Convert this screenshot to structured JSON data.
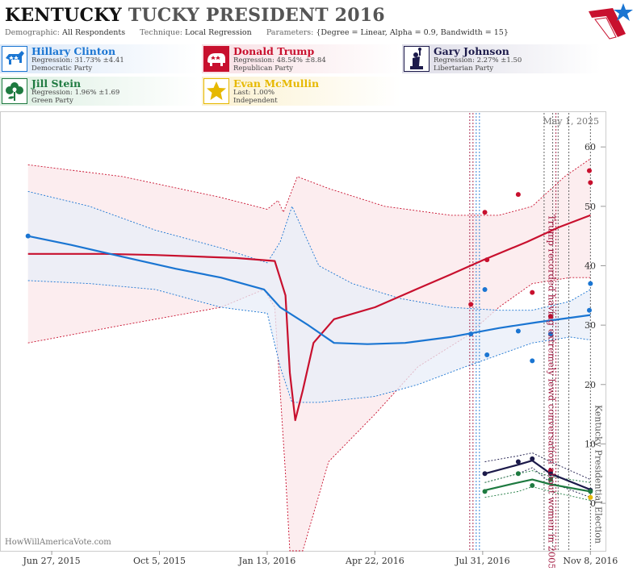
{
  "header": {
    "state": "KENTUCKY",
    "race": "TUCKY PRESIDENT 2016",
    "demographic_label": "Demographic:",
    "demographic_value": "All Respondents",
    "technique_label": "Technique:",
    "technique_value": "Local Regression",
    "parameters_label": "Parameters:",
    "parameters_value": "{Degree = Linear, Alpha = 0.9, Bandwidth = 15}"
  },
  "candidates": [
    {
      "name": "Hillary Clinton",
      "stat": "Regression: 31.73% ±4.41",
      "party": "Democratic Party",
      "color": "#1a75d2",
      "icon": "donkey-icon"
    },
    {
      "name": "Donald Trump",
      "stat": "Regression: 48.54% ±8.84",
      "party": "Republican Party",
      "color": "#c8102e",
      "icon": "elephant-icon"
    },
    {
      "name": "Gary Johnson",
      "stat": "Regression: 2.27% ±1.50",
      "party": "Libertarian Party",
      "color": "#1c1a4a",
      "icon": "liberty-statue-icon"
    },
    {
      "name": "Jill Stein",
      "stat": "Regression: 1.96% ±1.69",
      "party": "Green Party",
      "color": "#1e7a40",
      "icon": "flower-icon"
    },
    {
      "name": "Evan McMullin",
      "stat": "Last: 1.00%",
      "party": "Independent",
      "color": "#e6b800",
      "icon": "star-icon"
    }
  ],
  "chart_data": {
    "type": "line",
    "date_label": "May 1, 2025",
    "watermark": "HowWillAmericaVote.com",
    "x_ticks": [
      "Jun 27, 2015",
      "Oct 5, 2015",
      "Jan 13, 2016",
      "Apr 22, 2016",
      "Jul 31, 2016",
      "Nov 8, 2016"
    ],
    "x_range": [
      "2015-05-10",
      "2016-11-22"
    ],
    "ylim": [
      -8,
      66
    ],
    "y_ticks": [
      0,
      10,
      20,
      30,
      40,
      50,
      60
    ],
    "annotations": [
      {
        "text": "Trump recorded having extremely lewd conversation about women in 2005",
        "date": "2016-10-07",
        "color": "#a0143c"
      },
      {
        "text": "Kentucky Presidential Election",
        "date": "2016-11-08",
        "color": "#555555"
      }
    ],
    "event_lines": [
      {
        "date": "2016-07-19",
        "color": "#a0143c"
      },
      {
        "date": "2016-07-22",
        "color": "#a0143c"
      },
      {
        "date": "2016-07-25",
        "color": "#1a75d2"
      },
      {
        "date": "2016-07-28",
        "color": "#1a75d2"
      },
      {
        "date": "2016-09-26",
        "color": "#555555"
      },
      {
        "date": "2016-10-04",
        "color": "#555555"
      },
      {
        "date": "2016-10-07",
        "color": "#a0143c"
      },
      {
        "date": "2016-10-09",
        "color": "#555555"
      },
      {
        "date": "2016-10-19",
        "color": "#555555"
      },
      {
        "date": "2016-11-08",
        "color": "#555555"
      }
    ],
    "series": [
      {
        "name": "Donald Trump",
        "color": "#c8102e",
        "band_fill": "#fbe7ea",
        "line": [
          [
            "2015-06-05",
            42
          ],
          [
            "2015-08-15",
            42
          ],
          [
            "2015-10-01",
            41.8
          ],
          [
            "2015-12-15",
            41.3
          ],
          [
            "2016-01-20",
            40.8
          ],
          [
            "2016-01-30",
            35
          ],
          [
            "2016-02-03",
            22
          ],
          [
            "2016-02-08",
            14
          ],
          [
            "2016-02-15",
            19
          ],
          [
            "2016-02-25",
            27
          ],
          [
            "2016-03-15",
            31
          ],
          [
            "2016-04-22",
            33
          ],
          [
            "2016-05-30",
            36
          ],
          [
            "2016-07-01",
            38.5
          ],
          [
            "2016-08-01",
            41
          ],
          [
            "2016-09-10",
            44
          ],
          [
            "2016-10-10",
            46.5
          ],
          [
            "2016-11-08",
            48.5
          ]
        ],
        "upper": [
          [
            "2015-06-05",
            57
          ],
          [
            "2015-09-01",
            55
          ],
          [
            "2015-12-01",
            51.5
          ],
          [
            "2016-01-13",
            49.5
          ],
          [
            "2016-01-23",
            51
          ],
          [
            "2016-01-28",
            49
          ],
          [
            "2016-02-10",
            55
          ],
          [
            "2016-03-10",
            53
          ],
          [
            "2016-05-01",
            50
          ],
          [
            "2016-07-01",
            48.5
          ],
          [
            "2016-08-15",
            48.5
          ],
          [
            "2016-09-15",
            50
          ],
          [
            "2016-10-15",
            55
          ],
          [
            "2016-11-08",
            58
          ]
        ],
        "lower": [
          [
            "2015-06-05",
            27
          ],
          [
            "2015-09-01",
            30
          ],
          [
            "2015-12-01",
            33
          ],
          [
            "2016-01-10",
            36
          ],
          [
            "2016-01-20",
            33
          ],
          [
            "2016-01-30",
            5
          ],
          [
            "2016-02-03",
            -8
          ],
          [
            "2016-02-15",
            -8
          ],
          [
            "2016-03-10",
            7
          ],
          [
            "2016-04-22",
            15
          ],
          [
            "2016-06-01",
            23
          ],
          [
            "2016-07-15",
            28
          ],
          [
            "2016-08-15",
            33
          ],
          [
            "2016-09-15",
            37
          ],
          [
            "2016-10-20",
            38
          ],
          [
            "2016-11-08",
            38
          ]
        ],
        "points": [
          [
            "2016-07-20",
            33.5
          ],
          [
            "2016-08-02",
            49
          ],
          [
            "2016-08-04",
            41
          ],
          [
            "2016-09-02",
            52
          ],
          [
            "2016-09-15",
            35.5
          ],
          [
            "2016-10-02",
            31.5
          ],
          [
            "2016-10-02",
            5.5
          ],
          [
            "2016-11-07",
            56
          ],
          [
            "2016-11-08",
            54
          ]
        ]
      },
      {
        "name": "Hillary Clinton",
        "color": "#1a75d2",
        "band_fill": "#e8eef8",
        "line": [
          [
            "2015-06-05",
            45
          ],
          [
            "2015-07-15",
            43.5
          ],
          [
            "2015-09-01",
            41.5
          ],
          [
            "2015-10-20",
            39.5
          ],
          [
            "2015-12-01",
            38
          ],
          [
            "2016-01-10",
            36
          ],
          [
            "2016-01-25",
            33
          ],
          [
            "2016-02-20",
            30
          ],
          [
            "2016-03-15",
            27
          ],
          [
            "2016-04-15",
            26.8
          ],
          [
            "2016-05-20",
            27
          ],
          [
            "2016-07-01",
            28
          ],
          [
            "2016-08-15",
            29.5
          ],
          [
            "2016-09-20",
            30.5
          ],
          [
            "2016-11-08",
            31.7
          ]
        ],
        "upper": [
          [
            "2015-06-05",
            52.5
          ],
          [
            "2015-08-01",
            50
          ],
          [
            "2015-10-01",
            46
          ],
          [
            "2015-12-01",
            43
          ],
          [
            "2016-01-13",
            40.5
          ],
          [
            "2016-01-25",
            44
          ],
          [
            "2016-02-05",
            50
          ],
          [
            "2016-02-15",
            46
          ],
          [
            "2016-03-01",
            40
          ],
          [
            "2016-04-01",
            37
          ],
          [
            "2016-05-15",
            34.5
          ],
          [
            "2016-06-30",
            33
          ],
          [
            "2016-08-15",
            32.5
          ],
          [
            "2016-09-15",
            32.5
          ],
          [
            "2016-10-20",
            34
          ],
          [
            "2016-11-08",
            36
          ]
        ],
        "lower": [
          [
            "2015-06-05",
            37.5
          ],
          [
            "2015-08-01",
            37
          ],
          [
            "2015-10-01",
            36
          ],
          [
            "2015-12-01",
            33
          ],
          [
            "2016-01-13",
            32
          ],
          [
            "2016-01-25",
            23
          ],
          [
            "2016-02-05",
            17
          ],
          [
            "2016-03-01",
            17
          ],
          [
            "2016-04-22",
            18
          ],
          [
            "2016-06-01",
            20
          ],
          [
            "2016-07-15",
            23
          ],
          [
            "2016-08-15",
            25
          ],
          [
            "2016-09-15",
            27
          ],
          [
            "2016-10-20",
            28
          ],
          [
            "2016-11-08",
            27.5
          ]
        ],
        "points": [
          [
            "2015-06-05",
            45
          ],
          [
            "2016-07-20",
            28.5
          ],
          [
            "2016-08-02",
            36
          ],
          [
            "2016-08-04",
            25
          ],
          [
            "2016-09-02",
            29
          ],
          [
            "2016-09-15",
            24
          ],
          [
            "2016-10-02",
            28.5
          ],
          [
            "2016-11-07",
            32.5
          ],
          [
            "2016-11-08",
            37
          ]
        ]
      },
      {
        "name": "Gary Johnson",
        "color": "#1c1a4a",
        "line": [
          [
            "2016-08-02",
            5
          ],
          [
            "2016-09-02",
            6.5
          ],
          [
            "2016-09-15",
            7.2
          ],
          [
            "2016-10-02",
            5
          ],
          [
            "2016-11-08",
            2.3
          ]
        ],
        "upper": [
          [
            "2016-08-02",
            7
          ],
          [
            "2016-09-02",
            8
          ],
          [
            "2016-09-15",
            8.5
          ],
          [
            "2016-10-02",
            7
          ],
          [
            "2016-11-08",
            4
          ]
        ],
        "lower": [
          [
            "2016-08-02",
            3.5
          ],
          [
            "2016-09-02",
            5
          ],
          [
            "2016-09-15",
            6
          ],
          [
            "2016-10-02",
            3.5
          ],
          [
            "2016-11-08",
            1
          ]
        ],
        "points": [
          [
            "2016-08-02",
            5
          ],
          [
            "2016-09-02",
            7
          ],
          [
            "2016-09-15",
            7.5
          ],
          [
            "2016-10-02",
            5
          ],
          [
            "2016-11-08",
            2.2
          ]
        ]
      },
      {
        "name": "Jill Stein",
        "color": "#1e7a40",
        "line": [
          [
            "2016-08-02",
            2.2
          ],
          [
            "2016-09-02",
            3.5
          ],
          [
            "2016-09-15",
            4
          ],
          [
            "2016-10-02",
            3.2
          ],
          [
            "2016-11-08",
            2
          ]
        ],
        "upper": [
          [
            "2016-08-02",
            3.5
          ],
          [
            "2016-09-02",
            5
          ],
          [
            "2016-09-15",
            5.5
          ],
          [
            "2016-10-02",
            4.5
          ],
          [
            "2016-11-08",
            3.5
          ]
        ],
        "lower": [
          [
            "2016-08-02",
            1
          ],
          [
            "2016-09-02",
            2
          ],
          [
            "2016-09-15",
            2.8
          ],
          [
            "2016-10-02",
            2
          ],
          [
            "2016-11-08",
            0.5
          ]
        ],
        "points": [
          [
            "2016-08-02",
            2
          ],
          [
            "2016-09-02",
            5
          ],
          [
            "2016-09-15",
            3
          ],
          [
            "2016-10-02",
            4
          ],
          [
            "2016-11-08",
            2
          ]
        ]
      },
      {
        "name": "Evan McMullin",
        "color": "#e6b800",
        "points": [
          [
            "2016-11-08",
            1
          ]
        ]
      }
    ]
  }
}
